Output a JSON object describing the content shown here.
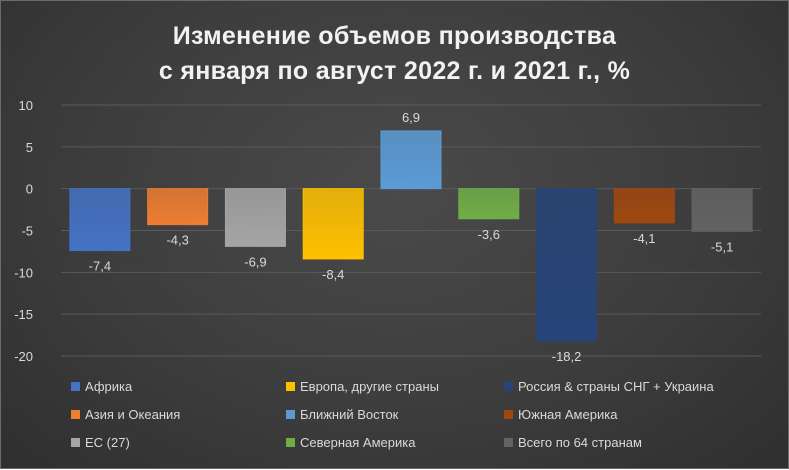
{
  "chart_data": {
    "type": "bar",
    "title_lines": [
      "Изменение объемов производства",
      "с января по август 2022 г. и 2021 г., %"
    ],
    "xlabel": "",
    "ylabel": "",
    "ylim": [
      -20,
      10
    ],
    "yticks": [
      10,
      5,
      0,
      -5,
      -10,
      -15,
      -20
    ],
    "grid": true,
    "legend_position": "bottom",
    "categories": [
      "Африка",
      "Азия и Океания",
      "ЕС (27)",
      "Европа, другие страны",
      "Ближний Восток",
      "Северная Америка",
      "Россия & страны СНГ + Украина",
      "Южная Америка",
      "Всего по 64 странам"
    ],
    "values": [
      -7.4,
      -4.3,
      -6.9,
      -8.4,
      6.9,
      -3.6,
      -18.2,
      -4.1,
      -5.1
    ],
    "value_labels": [
      "-7,4",
      "-4,3",
      "-6,9",
      "-8,4",
      "6,9",
      "-3,6",
      "-18,2",
      "-4,1",
      "-5,1"
    ],
    "colors": [
      "#4472c4",
      "#ed7d31",
      "#a5a5a5",
      "#ffc000",
      "#5b9bd5",
      "#70ad47",
      "#264478",
      "#9e480e",
      "#636363"
    ]
  }
}
